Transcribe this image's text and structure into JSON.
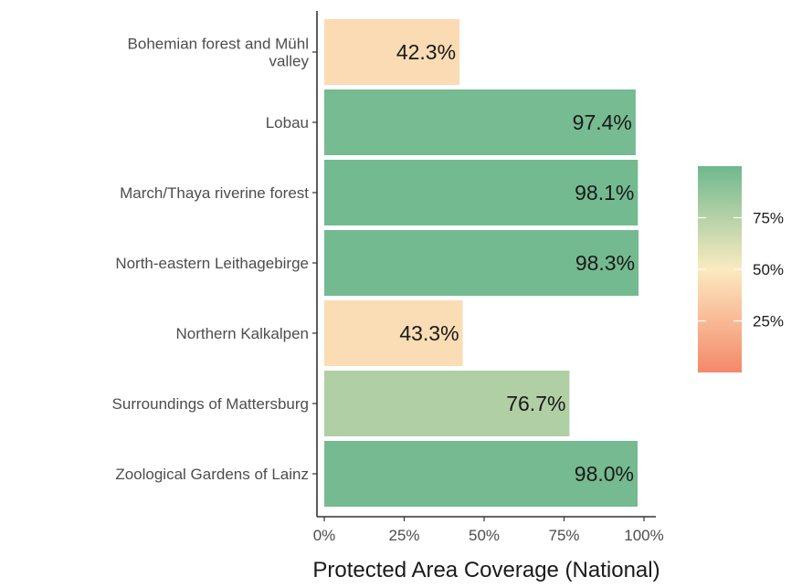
{
  "chart_data": {
    "type": "bar",
    "orientation": "horizontal",
    "categories": [
      "Bohemian forest and Mühl valley",
      "Lobau",
      "March/Thaya riverine forest",
      "North-eastern Leithagebirge",
      "Northern Kalkalpen",
      "Surroundings of Mattersburg",
      "Zoological Gardens of Lainz"
    ],
    "category_label_lines": [
      [
        "Bohemian forest and Mühl",
        "valley"
      ],
      [
        "Lobau"
      ],
      [
        "March/Thaya riverine forest"
      ],
      [
        "North-eastern Leithagebirge"
      ],
      [
        "Northern Kalkalpen"
      ],
      [
        "Surroundings of Mattersburg"
      ],
      [
        "Zoological Gardens of Lainz"
      ]
    ],
    "values": [
      42.3,
      97.4,
      98.1,
      98.3,
      43.3,
      76.7,
      98.0
    ],
    "value_labels": [
      "42.3%",
      "97.4%",
      "98.1%",
      "98.3%",
      "43.3%",
      "76.7%",
      "98.0%"
    ],
    "xlabel": "Protected Area Coverage (National)",
    "ylabel": "",
    "xlim": [
      0,
      100
    ],
    "x_ticks": [
      0,
      25,
      50,
      75,
      100
    ],
    "x_tick_labels": [
      "0%",
      "25%",
      "50%",
      "75%",
      "100%"
    ],
    "grid": false,
    "fill_scale": {
      "type": "gradient",
      "low_color": "#f4886a",
      "mid_color": "#fbeac0",
      "high_color": "#6fb88e",
      "midpoint": 50,
      "range": [
        0,
        100
      ],
      "legend_breaks": [
        25,
        50,
        75
      ],
      "legend_labels": [
        "25%",
        "50%",
        "75%"
      ],
      "legend_position": "right"
    }
  }
}
